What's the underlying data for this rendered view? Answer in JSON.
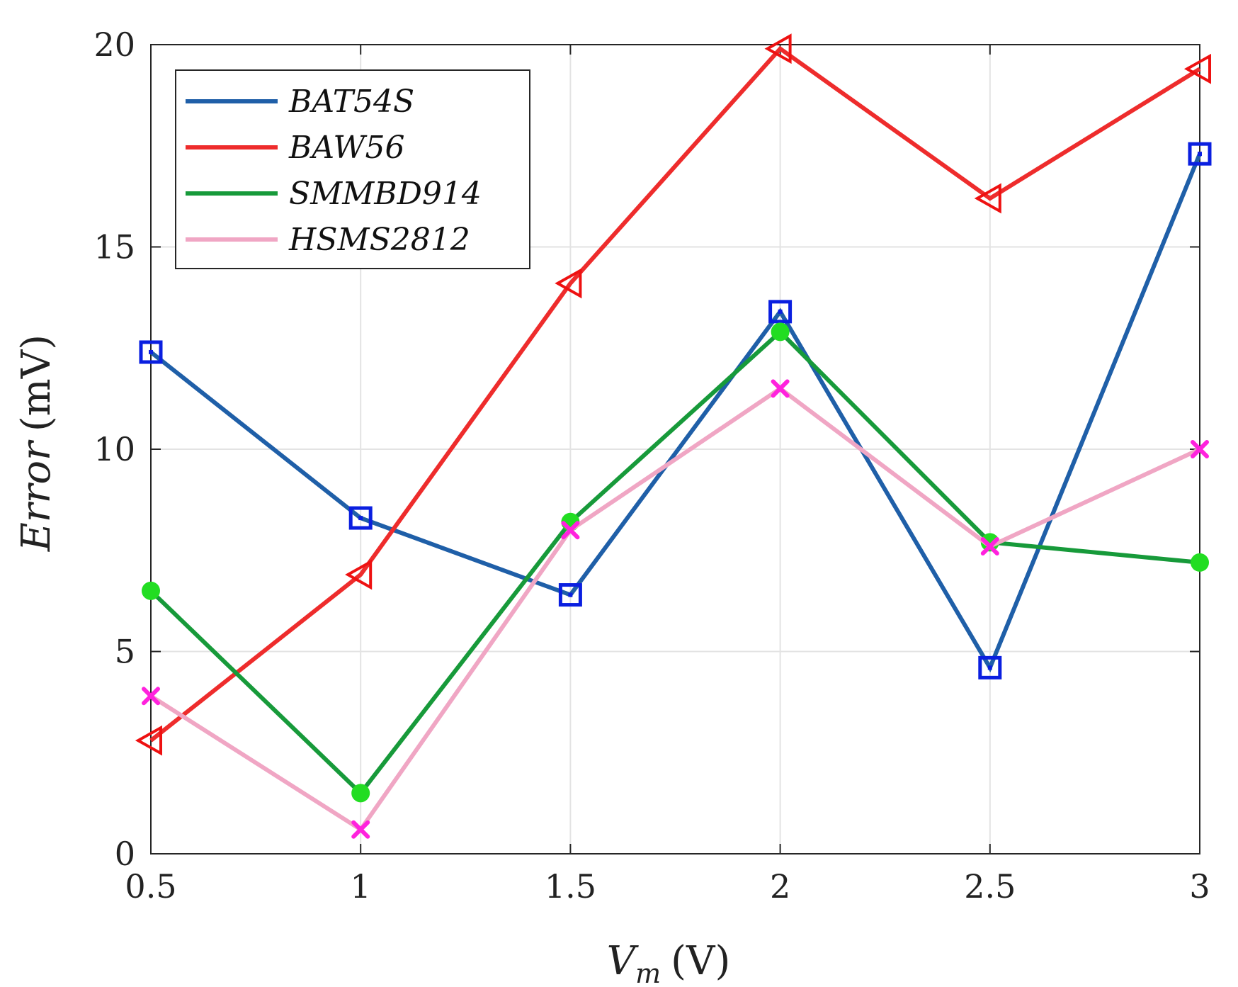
{
  "chart_data": {
    "type": "line",
    "x": [
      0.5,
      1,
      1.5,
      2,
      2.5,
      3
    ],
    "xlabel": {
      "main": "V",
      "subscript": "m",
      "unit": "(V)"
    },
    "ylabel": {
      "main": "Error",
      "unit": "(mV)"
    },
    "xlim": [
      0.5,
      3
    ],
    "ylim": [
      0,
      20
    ],
    "xticks": [
      0.5,
      1,
      1.5,
      2,
      2.5,
      3
    ],
    "xtick_labels": [
      "0.5",
      "1",
      "1.5",
      "2",
      "2.5",
      "3"
    ],
    "yticks": [
      0,
      5,
      10,
      15,
      20
    ],
    "ytick_labels": [
      "0",
      "5",
      "10",
      "15",
      "20"
    ],
    "grid": true,
    "legend_position": "top-left",
    "series": [
      {
        "name": "BAT54S",
        "color": "#1f5fa8",
        "marker": "square",
        "marker_color": "#0a1fe0",
        "values": [
          12.4,
          8.3,
          6.4,
          13.4,
          4.6,
          17.3
        ]
      },
      {
        "name": "BAW56",
        "color": "#ee2c2c",
        "marker": "triangle-left",
        "marker_color": "#ee1111",
        "values": [
          2.8,
          6.9,
          14.1,
          19.9,
          16.2,
          19.4
        ]
      },
      {
        "name": "SMMBD914",
        "color": "#179a3a",
        "marker": "circle",
        "marker_color": "#22dd22",
        "values": [
          6.5,
          1.5,
          8.2,
          12.9,
          7.7,
          7.2
        ]
      },
      {
        "name": "HSMS2812",
        "color": "#f0a6c4",
        "marker": "x",
        "marker_color": "#ff22dd",
        "values": [
          3.9,
          0.6,
          8.0,
          11.5,
          7.6,
          10.0
        ]
      }
    ]
  }
}
